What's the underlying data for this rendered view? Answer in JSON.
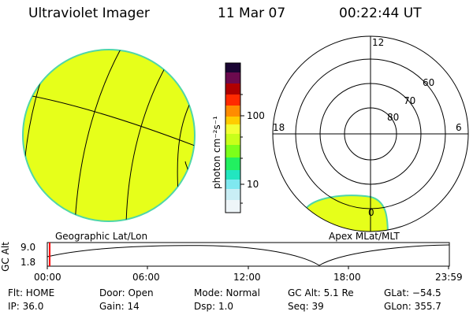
{
  "header": {
    "title": "Ultraviolet Imager",
    "date": "11 Mar 07",
    "time": "00:22:44 UT"
  },
  "left_panel": {
    "label": "Geographic Lat/Lon",
    "fill_color": "#e6ff1a",
    "edge_color": "#4fd6a8"
  },
  "colorbar": {
    "unit_label": "photon cm⁻²s⁻¹",
    "tick_100": "100",
    "tick_10": "10"
  },
  "right_panel": {
    "label": "Apex  MLat/MLT",
    "mlt_top": "12",
    "mlt_left": "18",
    "mlt_right": "6",
    "mlt_bottom": "0",
    "lat_60": "60",
    "lat_70": "70",
    "lat_80": "80"
  },
  "altitude_plot": {
    "ylabel": "GC Alt",
    "y_max": "9.0",
    "y_min": "1.8",
    "x_ticks": [
      "00:00",
      "06:00",
      "12:00",
      "18:00",
      "23:59"
    ],
    "current_marker_color": "#ff0000"
  },
  "info": {
    "flt": "Flt: HOME",
    "ip": "IP: 36.0",
    "door": "Door: Open",
    "gain": "Gain: 14",
    "mode": "Mode: Normal",
    "dsp": "Dsp:    1.0",
    "gc_alt": "GC Alt: 5.1 Re",
    "seq": "Seq: 39",
    "glat": "GLat: −54.5",
    "glon": "GLon: 355.7"
  }
}
